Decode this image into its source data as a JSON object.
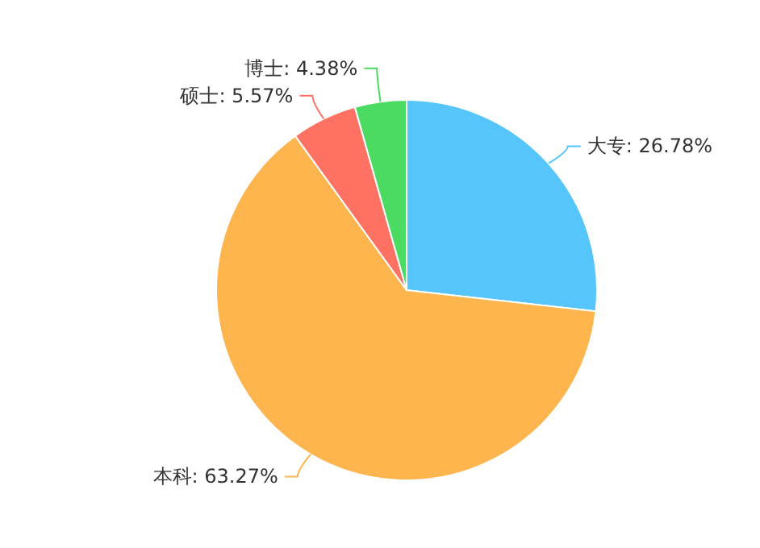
{
  "chart_data": {
    "type": "pie",
    "categories": [
      "大专",
      "本科",
      "硕士",
      "博士"
    ],
    "values": [
      26.78,
      63.27,
      5.57,
      4.38
    ],
    "value_labels": [
      "26.78%",
      "63.27%",
      "5.57%",
      "4.38%"
    ],
    "colors": [
      "#55c5fb",
      "#ffb54e",
      "#ff7263",
      "#4cdb62"
    ]
  }
}
